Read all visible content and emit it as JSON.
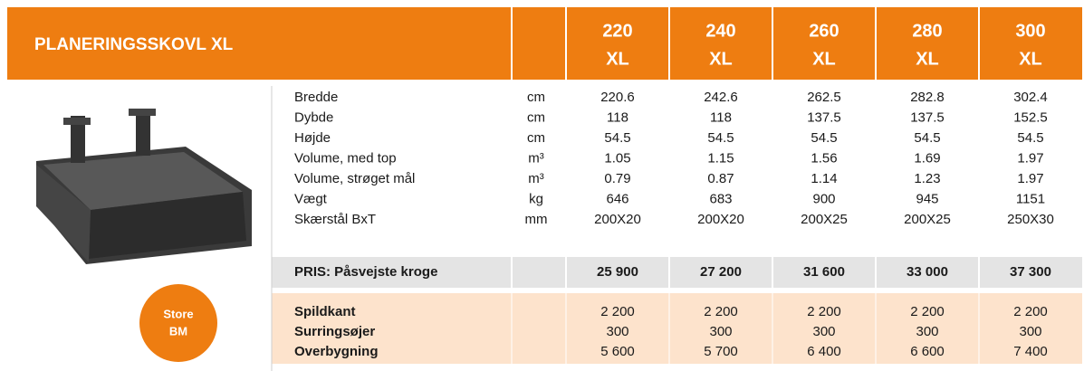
{
  "header": {
    "title": "PLANERINGSSKOVL XL",
    "models": [
      {
        "number": "220",
        "suffix": "XL"
      },
      {
        "number": "240",
        "suffix": "XL"
      },
      {
        "number": "260",
        "suffix": "XL"
      },
      {
        "number": "280",
        "suffix": "XL"
      },
      {
        "number": "300",
        "suffix": "XL"
      }
    ]
  },
  "badge": {
    "line1": "Store",
    "line2": "BM"
  },
  "specs": {
    "rows": [
      {
        "label": "Bredde",
        "unit": "cm",
        "values": [
          "220.6",
          "242.6",
          "262.5",
          "282.8",
          "302.4"
        ]
      },
      {
        "label": "Dybde",
        "unit": "cm",
        "values": [
          "118",
          "118",
          "137.5",
          "137.5",
          "152.5"
        ]
      },
      {
        "label": "Højde",
        "unit": "cm",
        "values": [
          "54.5",
          "54.5",
          "54.5",
          "54.5",
          "54.5"
        ]
      },
      {
        "label": "Volume, med top",
        "unit": "m³",
        "values": [
          "1.05",
          "1.15",
          "1.56",
          "1.69",
          "1.97"
        ]
      },
      {
        "label": "Volume, strøget mål",
        "unit": "m³",
        "values": [
          "0.79",
          "0.87",
          "1.14",
          "1.23",
          "1.97"
        ]
      },
      {
        "label": "Vægt",
        "unit": "kg",
        "values": [
          "646",
          "683",
          "900",
          "945",
          "1151"
        ]
      },
      {
        "label": "Skærstål BxT",
        "unit": "mm",
        "values": [
          "200X20",
          "200X20",
          "200X25",
          "200X25",
          "250X30"
        ]
      }
    ]
  },
  "price": {
    "label": "PRIS: Påsvejste kroge",
    "values": [
      "25 900",
      "27 200",
      "31 600",
      "33 000",
      "37 300"
    ]
  },
  "extras": {
    "rows": [
      {
        "label": "Spildkant",
        "values": [
          "2 200",
          "2 200",
          "2 200",
          "2 200",
          "2 200"
        ]
      },
      {
        "label": "Surringsøjer",
        "values": [
          "300",
          "300",
          "300",
          "300",
          "300"
        ]
      },
      {
        "label": "Overbygning",
        "values": [
          "5 600",
          "5 700",
          "6 400",
          "6 600",
          "7 400"
        ]
      }
    ]
  }
}
